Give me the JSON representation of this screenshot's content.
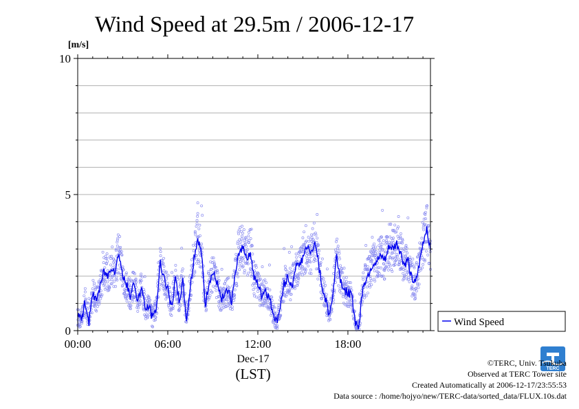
{
  "chart_data": {
    "type": "line",
    "title": "Wind Speed at 29.5m / 2006-12-17",
    "ylabel_unit": "[m/s]",
    "xlabel_date": "Dec-17",
    "xlabel_tz": "(LST)",
    "ylim": [
      0,
      10
    ],
    "y_ticks": [
      "0",
      "5",
      "10"
    ],
    "xlim_hours": [
      0,
      23.5
    ],
    "x_ticks": [
      {
        "hour": 0,
        "label": "00:00"
      },
      {
        "hour": 6,
        "label": "06:00"
      },
      {
        "hour": 12,
        "label": "12:00"
      },
      {
        "hour": 18,
        "label": "18:00"
      }
    ],
    "grid": true,
    "legend_position": "right",
    "series": [
      {
        "name": "Wind Speed",
        "color": "#0000ee",
        "x_hours": [
          0.0,
          0.25,
          0.5,
          0.75,
          1.0,
          1.25,
          1.5,
          1.75,
          2.0,
          2.25,
          2.5,
          2.75,
          3.0,
          3.25,
          3.5,
          3.75,
          4.0,
          4.25,
          4.5,
          4.75,
          5.0,
          5.25,
          5.5,
          5.75,
          6.0,
          6.25,
          6.5,
          6.75,
          7.0,
          7.25,
          7.5,
          7.75,
          8.0,
          8.25,
          8.5,
          8.75,
          9.0,
          9.25,
          9.5,
          9.75,
          10.0,
          10.25,
          10.5,
          10.75,
          11.0,
          11.25,
          11.5,
          11.75,
          12.0,
          12.25,
          12.5,
          12.75,
          13.0,
          13.25,
          13.5,
          13.75,
          14.0,
          14.25,
          14.5,
          14.75,
          15.0,
          15.25,
          15.5,
          15.75,
          16.0,
          16.25,
          16.5,
          16.75,
          17.0,
          17.25,
          17.5,
          17.75,
          18.0,
          18.25,
          18.5,
          18.75,
          19.0,
          19.25,
          19.5,
          19.75,
          20.0,
          20.25,
          20.5,
          20.75,
          21.0,
          21.25,
          21.5,
          21.75,
          22.0,
          22.25,
          22.5,
          22.75,
          23.0,
          23.25,
          23.5
        ],
        "values": [
          0.5,
          0.4,
          1.1,
          0.3,
          1.3,
          1.2,
          1.6,
          2.2,
          2.0,
          2.4,
          2.2,
          2.9,
          2.0,
          1.7,
          1.2,
          1.8,
          1.1,
          1.6,
          0.8,
          0.9,
          0.4,
          0.9,
          2.5,
          2.0,
          1.5,
          0.8,
          1.9,
          1.1,
          1.8,
          0.4,
          1.6,
          2.7,
          3.4,
          2.8,
          0.9,
          1.8,
          2.1,
          1.8,
          1.2,
          1.2,
          1.5,
          1.1,
          2.0,
          2.9,
          3.1,
          2.7,
          2.9,
          1.9,
          1.7,
          1.3,
          1.5,
          1.2,
          0.7,
          0.3,
          0.9,
          1.7,
          2.0,
          1.6,
          2.3,
          2.4,
          2.7,
          3.1,
          2.8,
          3.2,
          2.6,
          1.7,
          1.2,
          0.6,
          1.3,
          2.8,
          1.9,
          1.5,
          1.4,
          1.3,
          0.3,
          0.2,
          1.7,
          1.9,
          2.3,
          2.5,
          2.6,
          2.7,
          2.6,
          3.1,
          3.0,
          3.2,
          2.9,
          2.4,
          2.6,
          1.9,
          1.7,
          2.4,
          3.2,
          3.8,
          3.0
        ]
      }
    ]
  },
  "footer": {
    "credit": "©TERC, Univ. Tsukuba",
    "observed": "Observed at TERC Tower site",
    "created": "Created Automatically at 2006-12-17/23:55:53",
    "source": "Data source : /home/hojyo/new/TERC-data/sorted_data/FLUX.10s.dat",
    "logo_text": "TERC",
    "logo_color": "#2f7fd0"
  }
}
